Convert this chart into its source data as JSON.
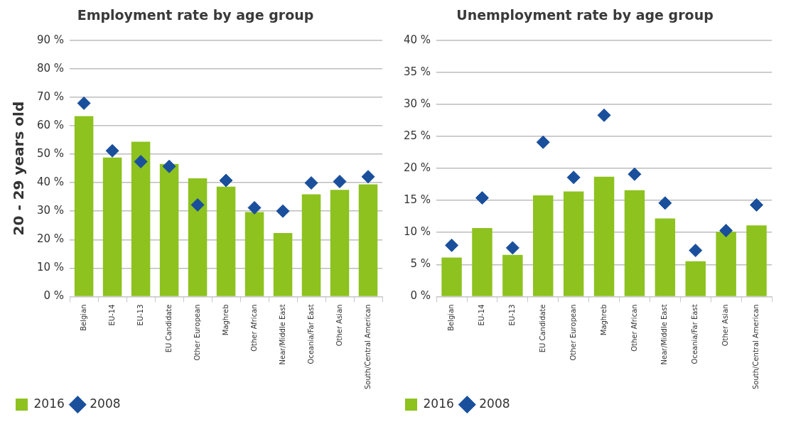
{
  "chart_data": [
    {
      "type": "bar",
      "title": "Employment rate by age group",
      "ylabel": "20 - 29 years old",
      "categories": [
        "Belgian",
        "EU-14",
        "EU-13",
        "EU Candidate",
        "Other European",
        "Maghreb",
        "Other African",
        "Near/Middle East",
        "Oceania/Far East",
        "Other Asian",
        "South/Central American"
      ],
      "series": [
        {
          "name": "2016",
          "color": "#8dc21f",
          "values": [
            63.4,
            48.8,
            54.4,
            46.6,
            41.5,
            38.6,
            29.7,
            22.3,
            35.9,
            37.5,
            39.4
          ]
        },
        {
          "name": "2008",
          "type": "scatter",
          "color": "#1a4f9c",
          "values": [
            67.9,
            51.2,
            47.4,
            45.7,
            32.2,
            40.8,
            31.2,
            30,
            39.9,
            40.4,
            42.1
          ]
        }
      ],
      "marker": "diamond",
      "ylim": [
        0,
        90
      ],
      "yticks": [
        {
          "value": 0,
          "label": "0 %"
        },
        {
          "value": 10,
          "label": "10 %"
        },
        {
          "value": 20,
          "label": "20 %"
        },
        {
          "value": 30,
          "label": "30 %"
        },
        {
          "value": 40,
          "label": "40 %"
        },
        {
          "value": 50,
          "label": "50 %"
        },
        {
          "value": 60,
          "label": "60 %"
        },
        {
          "value": 70,
          "label": "70 %"
        },
        {
          "value": 80,
          "label": "80 %"
        },
        {
          "value": 90,
          "label": "90 %"
        }
      ],
      "grid": "y",
      "legend": "bottom left"
    },
    {
      "type": "bar",
      "title": "Unemployment rate by age group",
      "categories": [
        "Belgian",
        "EU-14",
        "EU-13",
        "EU Candidate",
        "Other European",
        "Maghreb",
        "Other African",
        "Near/Middle East",
        "Oceania/Far East",
        "Other Asian",
        "South/Central American"
      ],
      "series": [
        {
          "name": "2016",
          "color": "#8dc21f",
          "values": [
            6.1,
            10.7,
            6.5,
            15.8,
            16.4,
            18.7,
            16.6,
            12.2,
            5.5,
            10.1,
            11.1
          ]
        },
        {
          "name": "2008",
          "type": "scatter",
          "color": "#1a4f9c",
          "values": [
            8.0,
            15.4,
            7.6,
            24.1,
            18.6,
            28.3,
            19.1,
            14.6,
            7.2,
            10.3,
            14.3
          ]
        }
      ],
      "marker": "diamond",
      "ylim": [
        0,
        40
      ],
      "yticks": [
        {
          "value": 0,
          "label": "0 %"
        },
        {
          "value": 5,
          "label": "5 %"
        },
        {
          "value": 10,
          "label": "10 %"
        },
        {
          "value": 15,
          "label": "15 %"
        },
        {
          "value": 20,
          "label": "20 %"
        },
        {
          "value": 25,
          "label": "25 %"
        },
        {
          "value": 30,
          "label": "30 %"
        },
        {
          "value": 35,
          "label": "35 %"
        },
        {
          "value": 40,
          "label": "40 %"
        }
      ],
      "grid": "y",
      "legend": "bottom left"
    }
  ]
}
